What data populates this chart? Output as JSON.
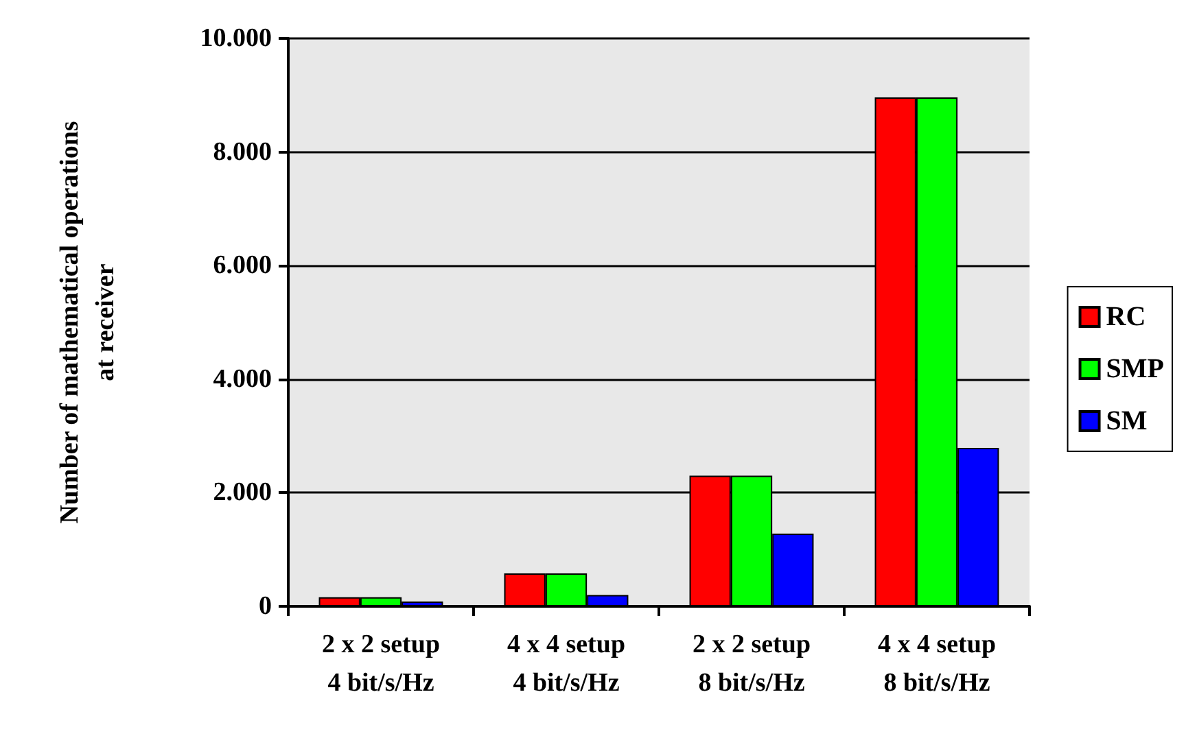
{
  "chart_data": {
    "type": "bar",
    "ylabel": "Number of mathematical operations\nat receiver",
    "categories": [
      "2 x 2 setup\n4 bit/s/Hz",
      "4 x 4 setup\n4 bit/s/Hz",
      "2 x 2 setup\n8 bit/s/Hz",
      "4 x 4 setup\n8 bit/s/Hz"
    ],
    "series": [
      {
        "name": "RC",
        "color": "#ff0000",
        "values": [
          160,
          580,
          2300,
          8960
        ]
      },
      {
        "name": "SMP",
        "color": "#00ff00",
        "values": [
          160,
          580,
          2300,
          8960
        ]
      },
      {
        "name": "SM",
        "color": "#0000ff",
        "values": [
          85,
          200,
          1280,
          2790
        ]
      }
    ],
    "ylim": [
      0,
      10000
    ],
    "yticks": [
      {
        "value": 0,
        "label": "0"
      },
      {
        "value": 2000,
        "label": "2.000"
      },
      {
        "value": 4000,
        "label": "4.000"
      },
      {
        "value": 6000,
        "label": "6.000"
      },
      {
        "value": 8000,
        "label": "8.000"
      },
      {
        "value": 10000,
        "label": "10.000"
      }
    ],
    "grid": "y",
    "legend": "right"
  }
}
